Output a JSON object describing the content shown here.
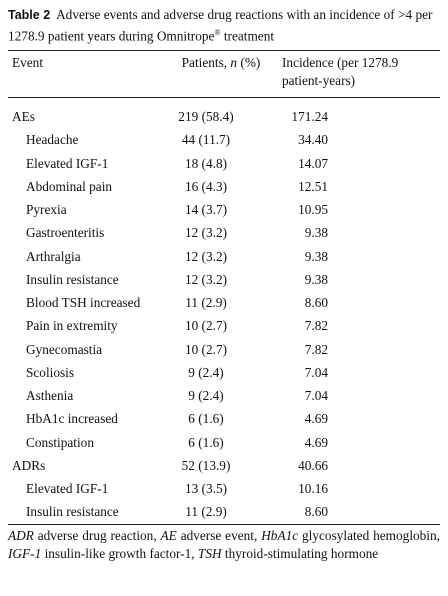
{
  "caption": {
    "label": "Table 2",
    "text": "Adverse events and adverse drug reactions with an incidence of >4 per 1278.9 patient years during Omnitrope",
    "mark": "®",
    "suffix": "treatment"
  },
  "header": {
    "event": "Event",
    "patients_pre": "Patients,",
    "patients_n": "n",
    "patients_post": "(%)",
    "incidence": "Incidence (per 1278.9 patient-years)"
  },
  "groups": [
    {
      "name": "AEs",
      "patients": "219 (58.4)",
      "incidence": "171.24",
      "rows": [
        [
          "Headache",
          "44 (11.7)",
          "34.40"
        ],
        [
          "Elevated IGF-1",
          "18 (4.8)",
          "14.07"
        ],
        [
          "Abdominal pain",
          "16 (4.3)",
          "12.51"
        ],
        [
          "Pyrexia",
          "14 (3.7)",
          "10.95"
        ],
        [
          "Gastroenteritis",
          "12 (3.2)",
          "9.38"
        ],
        [
          "Arthralgia",
          "12 (3.2)",
          "9.38"
        ],
        [
          "Insulin resistance",
          "12 (3.2)",
          "9.38"
        ],
        [
          "Blood TSH increased",
          "11 (2.9)",
          "8.60"
        ],
        [
          "Pain in extremity",
          "10 (2.7)",
          "7.82"
        ],
        [
          "Gynecomastia",
          "10 (2.7)",
          "7.82"
        ],
        [
          "Scoliosis",
          "9 (2.4)",
          "7.04"
        ],
        [
          "Asthenia",
          "9 (2.4)",
          "7.04"
        ],
        [
          "HbA1c increased",
          "6 (1.6)",
          "4.69"
        ],
        [
          "Constipation",
          "6 (1.6)",
          "4.69"
        ]
      ]
    },
    {
      "name": "ADRs",
      "patients": "52 (13.9)",
      "incidence": "40.66",
      "rows": [
        [
          "Elevated IGF-1",
          "13 (3.5)",
          "10.16"
        ],
        [
          "Insulin resistance",
          "11 (2.9)",
          "8.60"
        ]
      ]
    }
  ],
  "footnote": [
    {
      "abbr": "ADR",
      "def": "adverse drug reaction,"
    },
    {
      "abbr": "AE",
      "def": "adverse event,"
    },
    {
      "abbr": "HbA1c",
      "def": "glycosylated hemoglobin,"
    },
    {
      "abbr": "IGF-1",
      "def": "insulin-like growth factor-1,"
    },
    {
      "abbr": "TSH",
      "def": "thyroid-stimulating hormone"
    }
  ]
}
